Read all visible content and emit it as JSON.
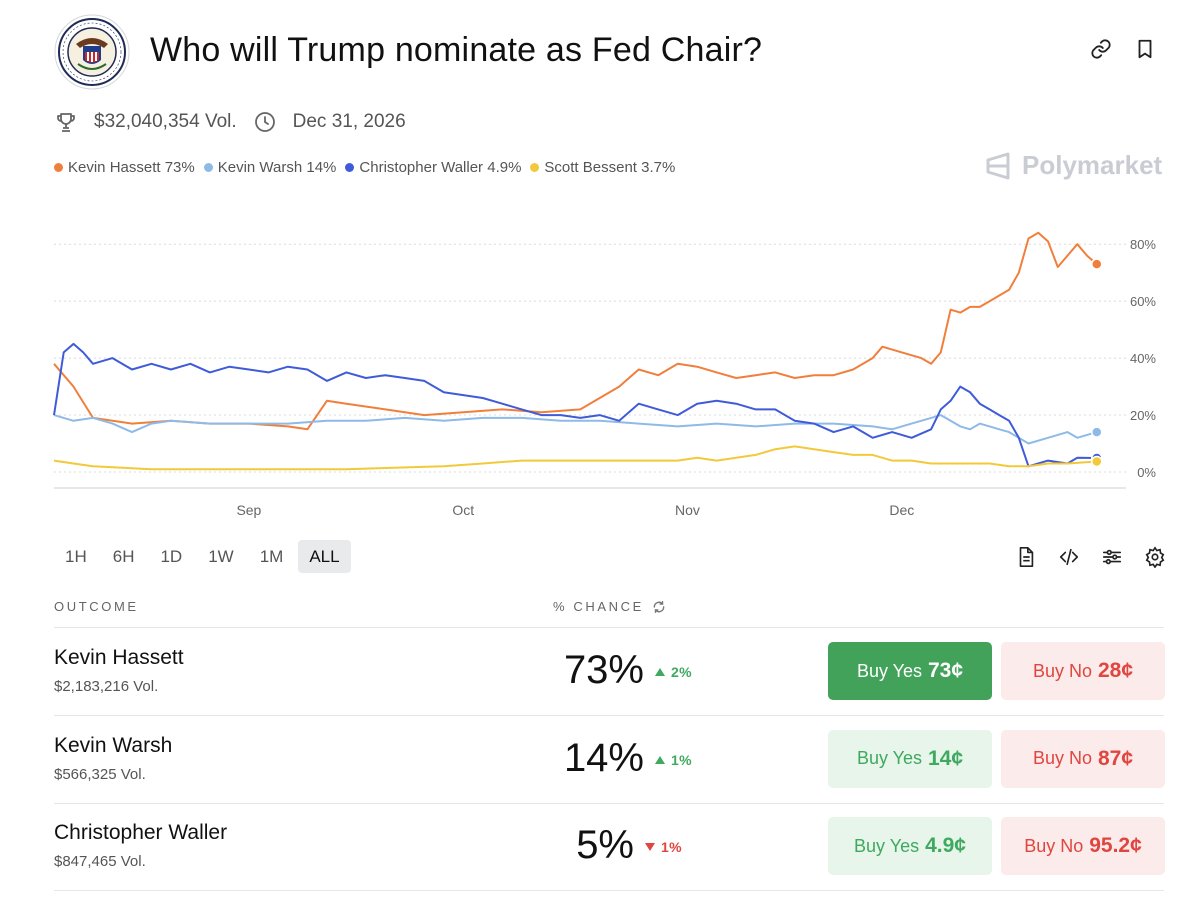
{
  "header": {
    "title": "Who will Trump nominate as Fed Chair?"
  },
  "meta": {
    "volume": "$32,040,354 Vol.",
    "end_date": "Dec 31, 2026"
  },
  "legend": [
    {
      "label": "Kevin Hassett 73%",
      "color": "#f07f3c"
    },
    {
      "label": "Kevin Warsh 14%",
      "color": "#8ebae8"
    },
    {
      "label": "Christopher Waller 4.9%",
      "color": "#3f5bd8"
    },
    {
      "label": "Scott Bessent 3.7%",
      "color": "#f2c93b"
    }
  ],
  "watermark": "Polymarket",
  "chart_data": {
    "type": "line",
    "x_tick_labels": [
      "Sep",
      "Oct",
      "Nov",
      "Dec"
    ],
    "y_tick_labels": [
      "80%",
      "60%",
      "40%",
      "20%",
      "0%"
    ],
    "ylim": [
      0,
      85
    ],
    "grid": true,
    "series": [
      {
        "name": "Kevin Hassett",
        "color": "#f07f3c",
        "points": [
          [
            0,
            38
          ],
          [
            2,
            30
          ],
          [
            4,
            19
          ],
          [
            8,
            17
          ],
          [
            12,
            18
          ],
          [
            16,
            17
          ],
          [
            20,
            17
          ],
          [
            24,
            16
          ],
          [
            26,
            15
          ],
          [
            28,
            25
          ],
          [
            30,
            24
          ],
          [
            34,
            22
          ],
          [
            38,
            20
          ],
          [
            42,
            21
          ],
          [
            46,
            22
          ],
          [
            50,
            21
          ],
          [
            54,
            22
          ],
          [
            58,
            30
          ],
          [
            60,
            36
          ],
          [
            62,
            34
          ],
          [
            64,
            38
          ],
          [
            66,
            37
          ],
          [
            68,
            35
          ],
          [
            70,
            33
          ],
          [
            72,
            34
          ],
          [
            74,
            35
          ],
          [
            76,
            33
          ],
          [
            78,
            34
          ],
          [
            80,
            34
          ],
          [
            82,
            36
          ],
          [
            84,
            40
          ],
          [
            85,
            44
          ],
          [
            87,
            42
          ],
          [
            89,
            40
          ],
          [
            90,
            38
          ],
          [
            91,
            42
          ],
          [
            92,
            57
          ],
          [
            93,
            56
          ],
          [
            94,
            58
          ],
          [
            95,
            58
          ],
          [
            96,
            60
          ],
          [
            97,
            62
          ],
          [
            98,
            64
          ],
          [
            99,
            70
          ],
          [
            100,
            82
          ],
          [
            101,
            84
          ],
          [
            102,
            81
          ],
          [
            103,
            72
          ],
          [
            104,
            76
          ],
          [
            105,
            80
          ],
          [
            106,
            76
          ],
          [
            107,
            73
          ]
        ]
      },
      {
        "name": "Kevin Warsh",
        "color": "#8ebae8",
        "points": [
          [
            0,
            20
          ],
          [
            2,
            18
          ],
          [
            4,
            19
          ],
          [
            6,
            17
          ],
          [
            8,
            14
          ],
          [
            10,
            17
          ],
          [
            12,
            18
          ],
          [
            16,
            17
          ],
          [
            20,
            17
          ],
          [
            24,
            17
          ],
          [
            28,
            18
          ],
          [
            32,
            18
          ],
          [
            36,
            19
          ],
          [
            40,
            18
          ],
          [
            44,
            19
          ],
          [
            48,
            19
          ],
          [
            52,
            18
          ],
          [
            56,
            18
          ],
          [
            60,
            17
          ],
          [
            64,
            16
          ],
          [
            68,
            17
          ],
          [
            72,
            16
          ],
          [
            76,
            17
          ],
          [
            80,
            17
          ],
          [
            84,
            16
          ],
          [
            86,
            15
          ],
          [
            88,
            17
          ],
          [
            90,
            19
          ],
          [
            91,
            20
          ],
          [
            92,
            18
          ],
          [
            93,
            16
          ],
          [
            94,
            15
          ],
          [
            95,
            17
          ],
          [
            96,
            16
          ],
          [
            97,
            15
          ],
          [
            98,
            14
          ],
          [
            99,
            12
          ],
          [
            100,
            10
          ],
          [
            102,
            12
          ],
          [
            104,
            14
          ],
          [
            105,
            12
          ],
          [
            107,
            14
          ]
        ]
      },
      {
        "name": "Christopher Waller",
        "color": "#3f5bd8",
        "points": [
          [
            0,
            20
          ],
          [
            1,
            42
          ],
          [
            2,
            45
          ],
          [
            3,
            42
          ],
          [
            4,
            38
          ],
          [
            6,
            40
          ],
          [
            8,
            36
          ],
          [
            10,
            38
          ],
          [
            12,
            36
          ],
          [
            14,
            38
          ],
          [
            16,
            35
          ],
          [
            18,
            37
          ],
          [
            20,
            36
          ],
          [
            22,
            35
          ],
          [
            24,
            37
          ],
          [
            26,
            36
          ],
          [
            28,
            32
          ],
          [
            30,
            35
          ],
          [
            32,
            33
          ],
          [
            34,
            34
          ],
          [
            36,
            33
          ],
          [
            38,
            32
          ],
          [
            40,
            28
          ],
          [
            42,
            27
          ],
          [
            44,
            26
          ],
          [
            46,
            24
          ],
          [
            48,
            22
          ],
          [
            50,
            20
          ],
          [
            52,
            20
          ],
          [
            54,
            19
          ],
          [
            56,
            20
          ],
          [
            58,
            18
          ],
          [
            60,
            24
          ],
          [
            62,
            22
          ],
          [
            64,
            20
          ],
          [
            66,
            24
          ],
          [
            68,
            25
          ],
          [
            70,
            24
          ],
          [
            72,
            22
          ],
          [
            74,
            22
          ],
          [
            76,
            18
          ],
          [
            78,
            17
          ],
          [
            80,
            14
          ],
          [
            82,
            16
          ],
          [
            84,
            12
          ],
          [
            86,
            14
          ],
          [
            88,
            12
          ],
          [
            90,
            15
          ],
          [
            91,
            22
          ],
          [
            92,
            25
          ],
          [
            93,
            30
          ],
          [
            94,
            28
          ],
          [
            95,
            24
          ],
          [
            96,
            22
          ],
          [
            97,
            20
          ],
          [
            98,
            18
          ],
          [
            99,
            12
          ],
          [
            100,
            2
          ],
          [
            102,
            4
          ],
          [
            104,
            3
          ],
          [
            105,
            5
          ],
          [
            107,
            4.9
          ]
        ]
      },
      {
        "name": "Scott Bessent",
        "color": "#f2c93b",
        "points": [
          [
            0,
            4
          ],
          [
            2,
            3
          ],
          [
            4,
            2
          ],
          [
            10,
            1
          ],
          [
            20,
            1
          ],
          [
            30,
            1
          ],
          [
            40,
            2
          ],
          [
            44,
            3
          ],
          [
            48,
            4
          ],
          [
            52,
            4
          ],
          [
            56,
            4
          ],
          [
            60,
            4
          ],
          [
            64,
            4
          ],
          [
            66,
            5
          ],
          [
            68,
            4
          ],
          [
            70,
            5
          ],
          [
            72,
            6
          ],
          [
            74,
            8
          ],
          [
            76,
            9
          ],
          [
            78,
            8
          ],
          [
            80,
            7
          ],
          [
            82,
            6
          ],
          [
            84,
            6
          ],
          [
            86,
            4
          ],
          [
            88,
            4
          ],
          [
            90,
            3
          ],
          [
            92,
            3
          ],
          [
            94,
            3
          ],
          [
            96,
            3
          ],
          [
            98,
            2
          ],
          [
            100,
            2
          ],
          [
            102,
            3
          ],
          [
            104,
            3
          ],
          [
            107,
            3.7
          ]
        ]
      }
    ]
  },
  "ranges": [
    {
      "label": "1H",
      "active": false
    },
    {
      "label": "6H",
      "active": false
    },
    {
      "label": "1D",
      "active": false
    },
    {
      "label": "1W",
      "active": false
    },
    {
      "label": "1M",
      "active": false
    },
    {
      "label": "ALL",
      "active": true
    }
  ],
  "table": {
    "col_outcome": "OUTCOME",
    "col_chance": "% CHANCE",
    "rows": [
      {
        "name": "Kevin Hassett",
        "volume": "$2,183,216 Vol.",
        "chance": "73%",
        "change": "2%",
        "direction": "up",
        "yes_label": "Buy Yes",
        "yes_price": "73¢",
        "no_label": "Buy No",
        "no_price": "28¢",
        "yes_solid": true
      },
      {
        "name": "Kevin Warsh",
        "volume": "$566,325 Vol.",
        "chance": "14%",
        "change": "1%",
        "direction": "up",
        "yes_label": "Buy Yes",
        "yes_price": "14¢",
        "no_label": "Buy No",
        "no_price": "87¢",
        "yes_solid": false
      },
      {
        "name": "Christopher Waller",
        "volume": "$847,465 Vol.",
        "chance": "5%",
        "change": "1%",
        "direction": "down",
        "yes_label": "Buy Yes",
        "yes_price": "4.9¢",
        "no_label": "Buy No",
        "no_price": "95.2¢",
        "yes_solid": false
      }
    ]
  }
}
